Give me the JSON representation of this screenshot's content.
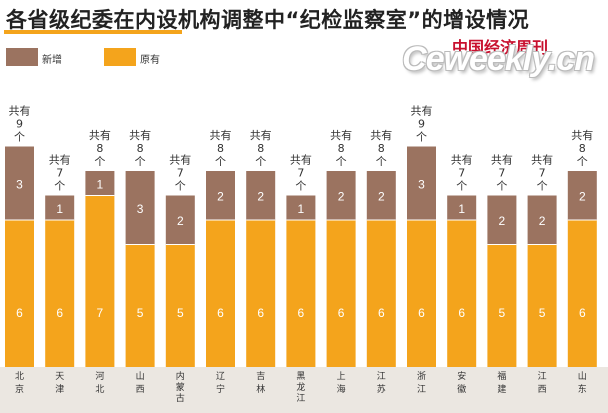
{
  "header": {
    "title": "各省级纪委在内设机构调整中“纪检监察室”的增设情况",
    "brand": "中国经济周刊",
    "watermark": "Ceweekly.cn"
  },
  "legend": {
    "new_label": "新增",
    "orig_label": "原有"
  },
  "colors": {
    "new": "#9b7360",
    "orig": "#f4a41c",
    "accent": "#f4a41c"
  },
  "chart_data": {
    "type": "bar",
    "stacked": true,
    "title": "各省级纪委在内设机构调整中“纪检监察室”的增设情况",
    "categories": [
      "北京",
      "天津",
      "河北",
      "山西",
      "内蒙古",
      "辽宁",
      "吉林",
      "黑龙江",
      "上海",
      "江苏",
      "浙江",
      "安徽",
      "福建",
      "江西",
      "山东"
    ],
    "series": [
      {
        "name": "原有",
        "values": [
          6,
          6,
          7,
          5,
          5,
          6,
          6,
          6,
          6,
          6,
          6,
          6,
          5,
          5,
          6
        ]
      },
      {
        "name": "新增",
        "values": [
          3,
          1,
          1,
          3,
          2,
          2,
          2,
          1,
          2,
          2,
          3,
          1,
          2,
          2,
          2
        ]
      }
    ],
    "totals": [
      9,
      7,
      8,
      8,
      7,
      8,
      8,
      7,
      8,
      8,
      9,
      7,
      7,
      7,
      8
    ],
    "total_labels": [
      "共有9个",
      "共有7个",
      "共有8个",
      "共有8个",
      "共有7个",
      "共有8个",
      "共有8个",
      "共有7个",
      "共有8个",
      "共有8个",
      "共有9个",
      "共有7个",
      "共有7个",
      "共有7个",
      "共有8个"
    ],
    "ylim": [
      0,
      9
    ],
    "legend_position": "top-left"
  }
}
